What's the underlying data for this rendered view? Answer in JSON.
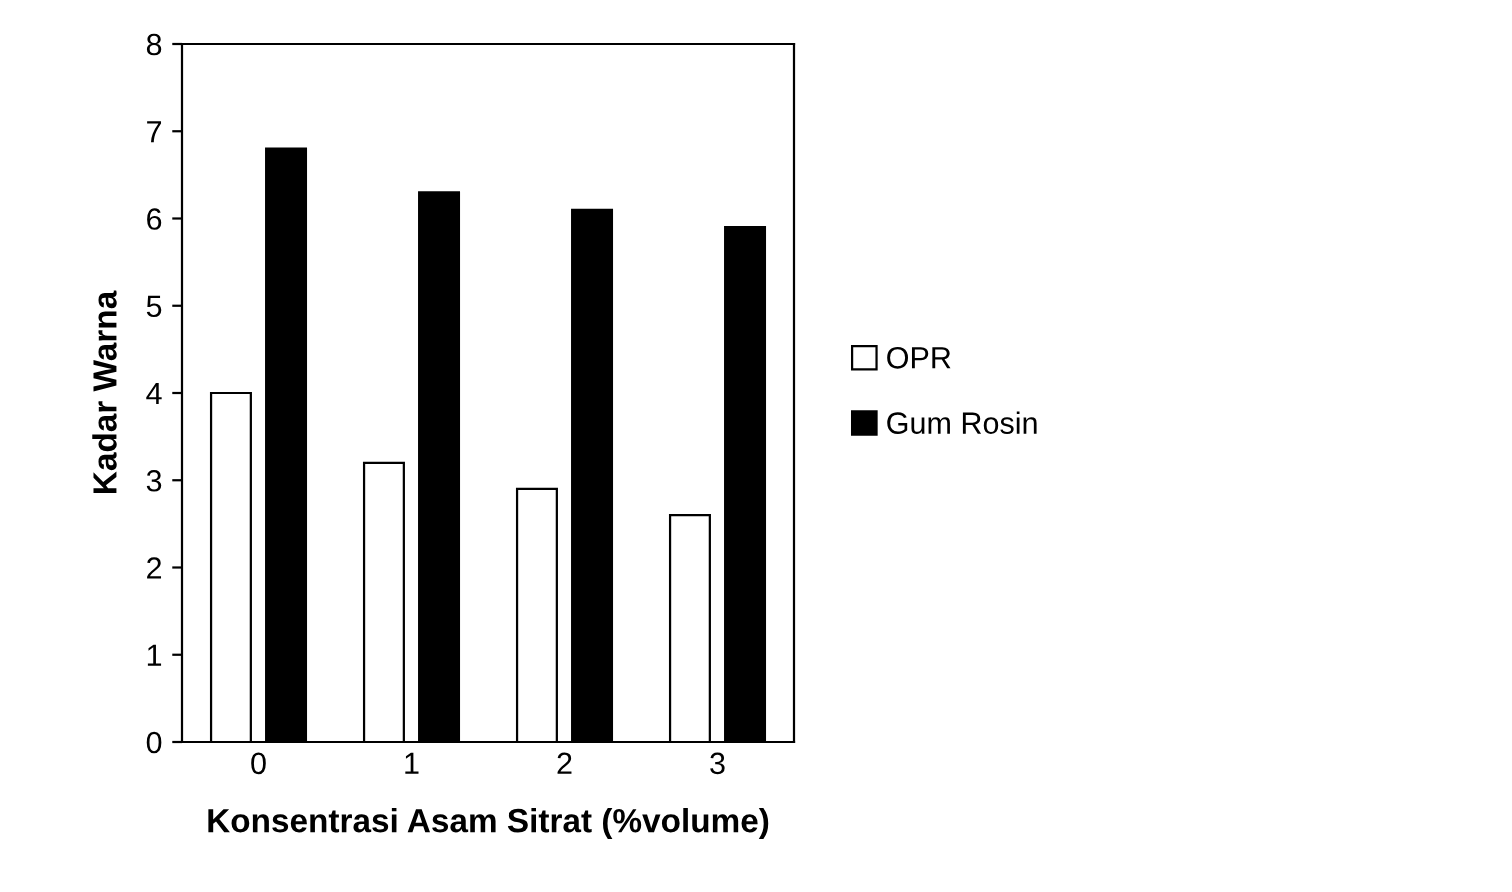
{
  "chart_data": {
    "type": "bar",
    "xlabel": "Konsentrasi Asam Sitrat (%volume)",
    "ylabel": "Kadar Warna",
    "categories": [
      "0",
      "1",
      "2",
      "3"
    ],
    "series": [
      {
        "name": "OPR",
        "color": "#ffffff",
        "values": [
          4.0,
          3.2,
          2.9,
          2.6
        ]
      },
      {
        "name": "Gum Rosin",
        "color": "#000000",
        "values": [
          6.8,
          6.3,
          6.1,
          5.9
        ]
      }
    ],
    "ylim": [
      0,
      8
    ],
    "yticks": [
      0,
      1,
      2,
      3,
      4,
      5,
      6,
      7,
      8
    ],
    "grid": false,
    "legend": "right"
  }
}
